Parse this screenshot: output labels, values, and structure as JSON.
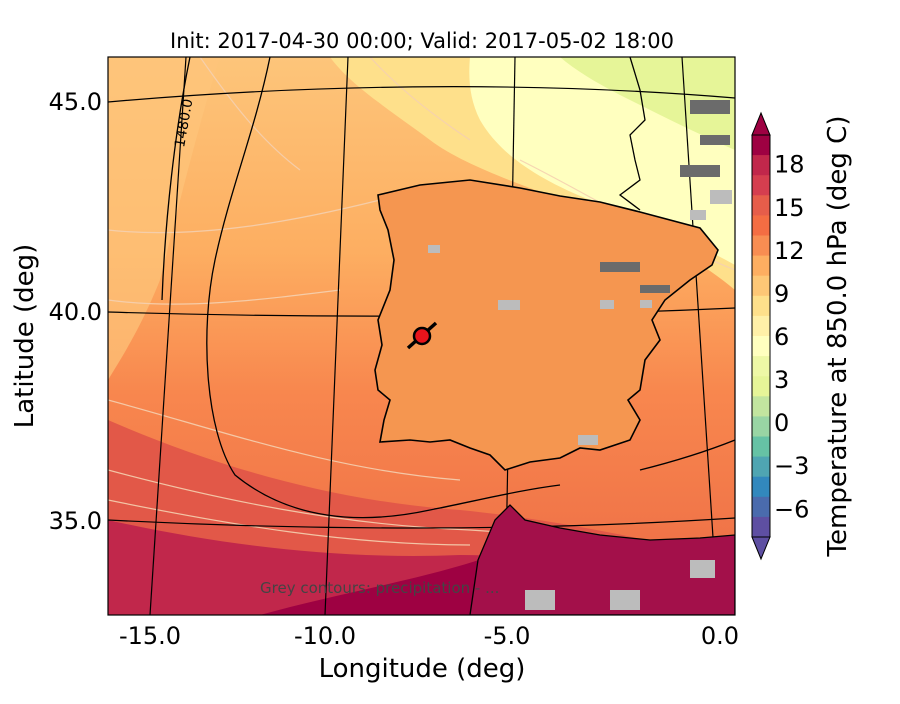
{
  "map": {
    "title": "Init: 2017-04-30 00:00; Valid: 2017-05-02 18:00",
    "xlabel": "Longitude (deg)",
    "ylabel": "Latitude (deg)",
    "x_ticks": [
      "-15.0",
      "-10.0",
      "-5.0",
      "0.0"
    ],
    "y_ticks": [
      "45.0",
      "40.0",
      "35.0"
    ],
    "contour_label": "1480.0",
    "overlay_note": "Grey contours: precipitation - ...",
    "marker": {
      "lon": -7.6,
      "lat": 39.3,
      "color": "#e8141c"
    }
  },
  "colorbar": {
    "label": "Temperature at 850.0 hPa (deg C)",
    "ticks": [
      "18",
      "15",
      "12",
      "9",
      "6",
      "3",
      "0",
      "−3",
      "−6"
    ],
    "range": [
      -8,
      20
    ]
  },
  "colors": {
    "warm_dark": "#9e0142",
    "warm": "#d53e4f",
    "orange": "#f46d43",
    "light_orange": "#fdae61",
    "yellow": "#fee08b",
    "pale": "#ffffbf",
    "green": "#e6f598",
    "teal": "#66c2a5",
    "blue": "#3288bd",
    "violet": "#5e4fa2"
  }
}
